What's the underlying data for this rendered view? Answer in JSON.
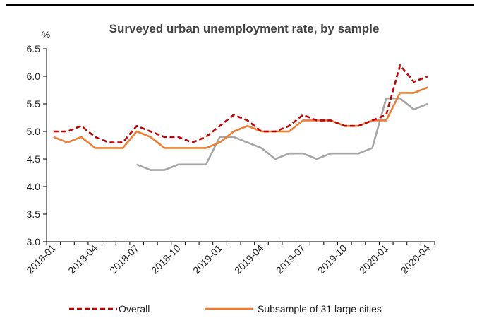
{
  "chart_data": {
    "type": "line",
    "title": "Surveyed urban unemployment rate, by sample",
    "ylabel": "%",
    "xlabel": "",
    "ylim": [
      3.0,
      6.5
    ],
    "yticks": [
      "3.0",
      "3.5",
      "4.0",
      "4.5",
      "5.0",
      "5.5",
      "6.0",
      "6.5"
    ],
    "x": [
      "2018-01",
      "2018-02",
      "2018-03",
      "2018-04",
      "2018-05",
      "2018-06",
      "2018-07",
      "2018-08",
      "2018-09",
      "2018-10",
      "2018-11",
      "2018-12",
      "2019-01",
      "2019-02",
      "2019-03",
      "2019-04",
      "2019-05",
      "2019-06",
      "2019-07",
      "2019-08",
      "2019-09",
      "2019-10",
      "2019-11",
      "2019-12",
      "2020-01",
      "2020-02",
      "2020-03",
      "2020-04"
    ],
    "xtick_labels": [
      "2018-01",
      "2018-04",
      "2018-07",
      "2018-10",
      "2019-01",
      "2019-04",
      "2019-07",
      "2019-10",
      "2020-01",
      "2020-04"
    ],
    "series": [
      {
        "name": "Overall",
        "color": "#c00000",
        "style": "dashed",
        "values": [
          5.0,
          5.0,
          5.1,
          4.9,
          4.8,
          4.8,
          5.1,
          5.0,
          4.9,
          4.9,
          4.8,
          4.9,
          5.1,
          5.3,
          5.2,
          5.0,
          5.0,
          5.1,
          5.3,
          5.2,
          5.2,
          5.1,
          5.1,
          5.2,
          5.3,
          6.2,
          5.9,
          6.0
        ]
      },
      {
        "name": "Subsample of 31 large cities",
        "color": "#ed7d31",
        "style": "solid",
        "values": [
          4.9,
          4.8,
          4.9,
          4.7,
          4.7,
          4.7,
          5.0,
          4.9,
          4.7,
          4.7,
          4.7,
          4.7,
          4.8,
          5.0,
          5.1,
          5.0,
          5.0,
          5.0,
          5.2,
          5.2,
          5.2,
          5.1,
          5.1,
          5.2,
          5.2,
          5.7,
          5.7,
          5.8
        ]
      },
      {
        "name": "",
        "color": "#a6a6a6",
        "style": "solid",
        "values": [
          null,
          null,
          null,
          null,
          null,
          null,
          4.4,
          4.3,
          4.3,
          4.4,
          4.4,
          4.4,
          4.9,
          4.9,
          4.8,
          4.7,
          4.5,
          4.6,
          4.6,
          4.5,
          4.6,
          4.6,
          4.6,
          4.7,
          5.6,
          5.6,
          5.4,
          5.5
        ]
      }
    ],
    "legend_position": "bottom",
    "grid": false
  }
}
